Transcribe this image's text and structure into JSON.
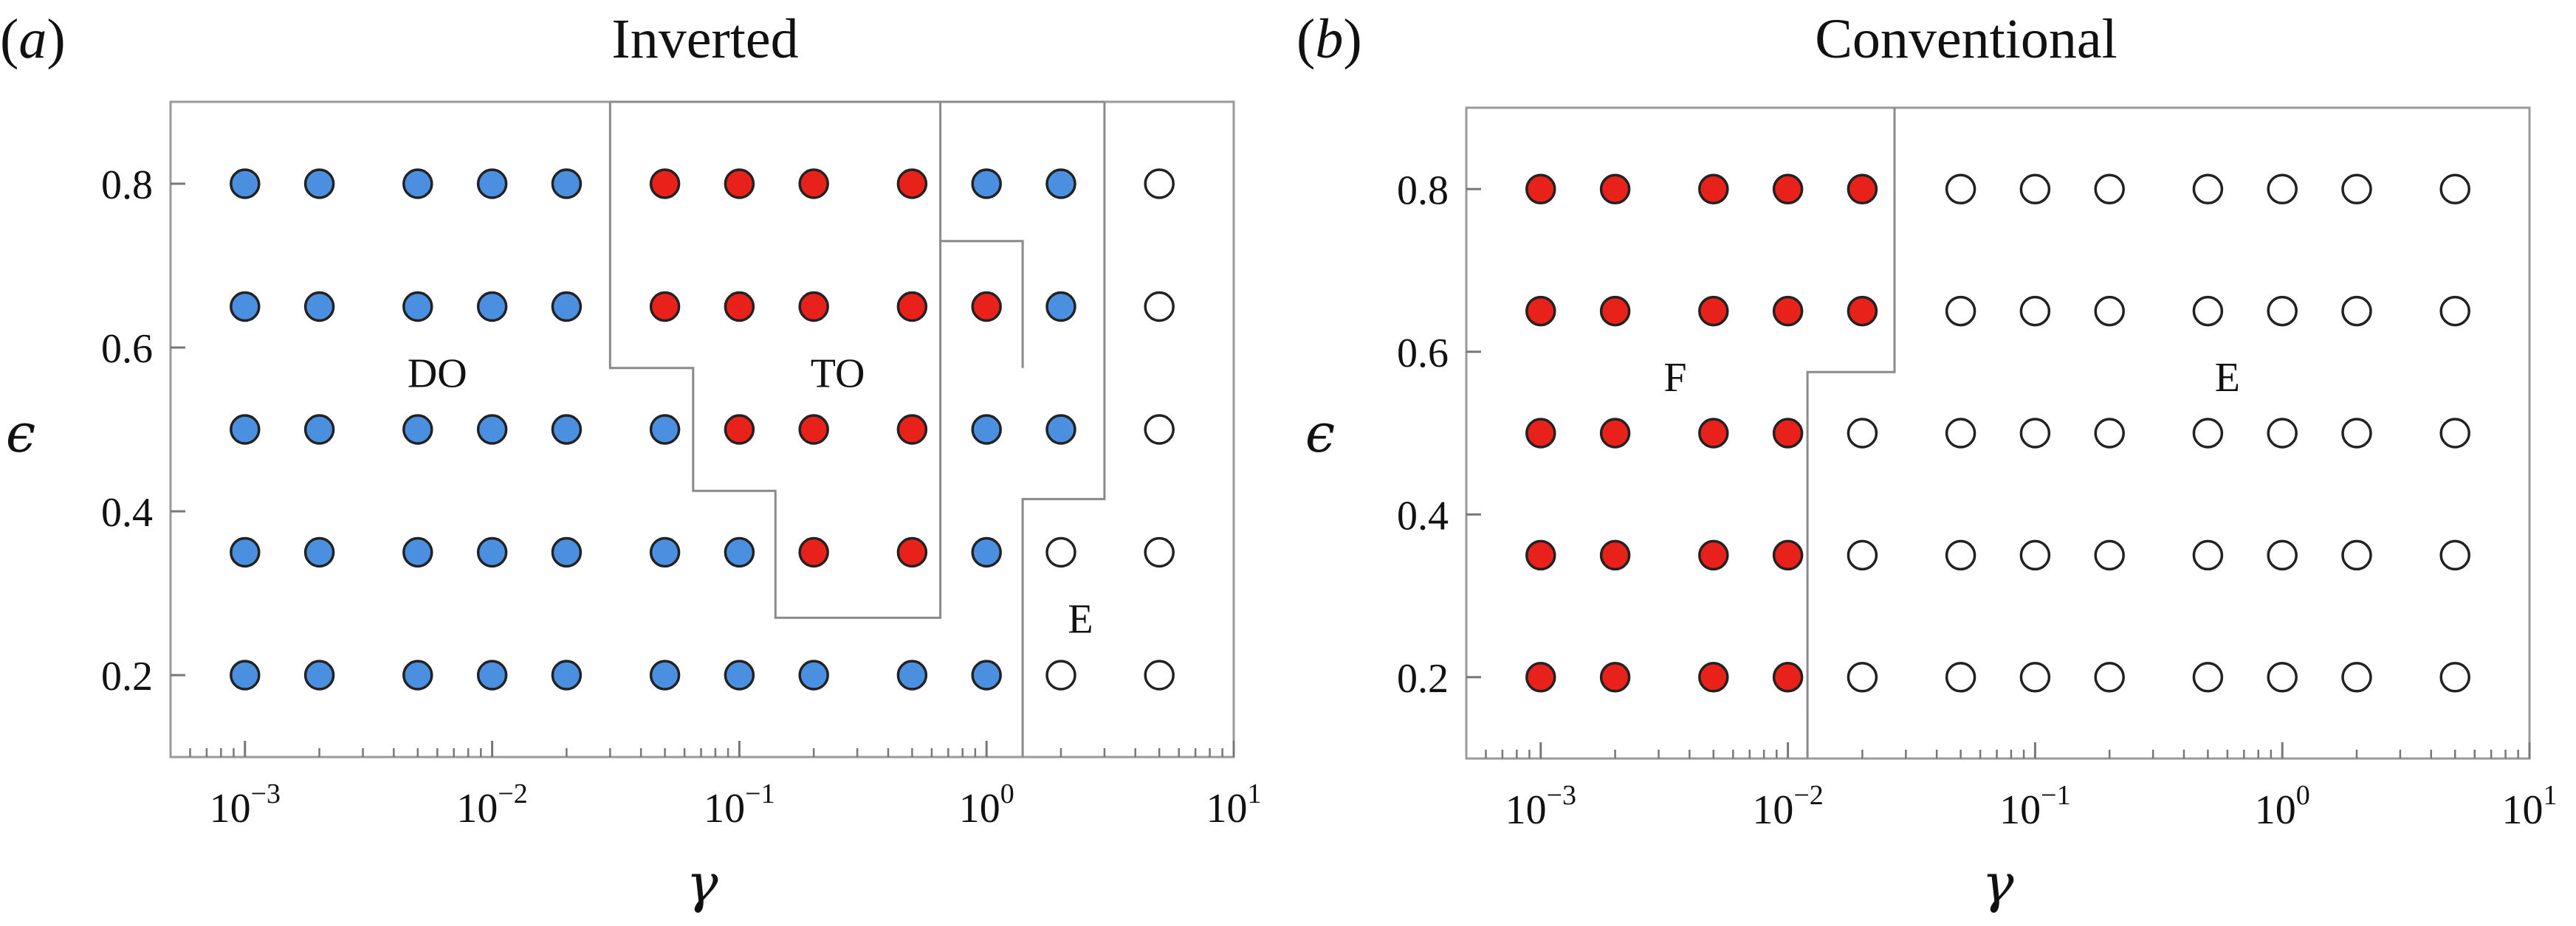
{
  "chart_data": [
    {
      "panel": "a",
      "type": "scatter",
      "title": "Inverted",
      "xlabel": "γ",
      "ylabel": "ϵ",
      "xscale": "log",
      "xlim": [
        0.0005,
        10
      ],
      "ylim": [
        0.1,
        0.9
      ],
      "xticks": [
        {
          "value": 0.001,
          "base": "10",
          "exp": "−3"
        },
        {
          "value": 0.01,
          "base": "10",
          "exp": "−2"
        },
        {
          "value": 0.1,
          "base": "10",
          "exp": "−1"
        },
        {
          "value": 1,
          "base": "10",
          "exp": "0"
        },
        {
          "value": 10,
          "base": "10",
          "exp": "1"
        }
      ],
      "yticks": [
        {
          "value": 0.2,
          "label": "0.2"
        },
        {
          "value": 0.4,
          "label": "0.4"
        },
        {
          "value": 0.6,
          "label": "0.6"
        },
        {
          "value": 0.8,
          "label": "0.8"
        }
      ],
      "grid": false,
      "gamma": [
        0.001,
        0.002,
        0.005,
        0.01,
        0.02,
        0.05,
        0.1,
        0.2,
        0.5,
        1,
        2,
        5
      ],
      "epsilon": [
        0.2,
        0.35,
        0.5,
        0.65,
        0.8
      ],
      "colors": {
        "DO": "#4a8fe0",
        "TO": "#e8211a",
        "E": "#ffffff",
        "F": "#e8211a"
      },
      "states": [
        [
          "DO",
          "DO",
          "DO",
          "DO",
          "DO",
          "DO",
          "DO",
          "DO",
          "DO",
          "DO",
          "E",
          "E"
        ],
        [
          "DO",
          "DO",
          "DO",
          "DO",
          "DO",
          "DO",
          "DO",
          "TO",
          "TO",
          "DO",
          "E",
          "E"
        ],
        [
          "DO",
          "DO",
          "DO",
          "DO",
          "DO",
          "DO",
          "TO",
          "TO",
          "TO",
          "DO",
          "DO",
          "E"
        ],
        [
          "DO",
          "DO",
          "DO",
          "DO",
          "DO",
          "TO",
          "TO",
          "TO",
          "TO",
          "TO",
          "DO",
          "E"
        ],
        [
          "DO",
          "DO",
          "DO",
          "DO",
          "DO",
          "TO",
          "TO",
          "TO",
          "TO",
          "DO",
          "DO",
          "E"
        ]
      ],
      "region_labels": [
        {
          "text": "DO",
          "x": 0.006,
          "y": 0.57
        },
        {
          "text": "TO",
          "x": 0.25,
          "y": 0.57
        },
        {
          "text": "E",
          "x": 2.4,
          "y": 0.27
        }
      ],
      "boundaries": [
        [
          [
            0.03,
            0.9
          ],
          [
            0.03,
            0.575
          ],
          [
            0.065,
            0.575
          ],
          [
            0.065,
            0.425
          ],
          [
            0.14,
            0.425
          ],
          [
            0.14,
            0.27
          ],
          [
            0.65,
            0.27
          ],
          [
            0.65,
            0.73
          ],
          [
            0.65,
            0.73
          ]
        ],
        [
          [
            0.65,
            0.9
          ],
          [
            0.65,
            0.73
          ],
          [
            1.4,
            0.73
          ],
          [
            1.4,
            0.575
          ],
          [
            1.4,
            0.575
          ]
        ],
        [
          [
            1.4,
            0.1
          ],
          [
            1.4,
            0.415
          ],
          [
            3.0,
            0.415
          ],
          [
            3.0,
            0.9
          ]
        ],
        [
          [
            0.03,
            0.9
          ],
          [
            3.0,
            0.9
          ]
        ]
      ]
    },
    {
      "panel": "b",
      "type": "scatter",
      "title": "Conventional",
      "xlabel": "γ",
      "ylabel": "ϵ",
      "xscale": "log",
      "xlim": [
        0.0005,
        10
      ],
      "ylim": [
        0.1,
        0.9
      ],
      "xticks": [
        {
          "value": 0.001,
          "base": "10",
          "exp": "−3"
        },
        {
          "value": 0.01,
          "base": "10",
          "exp": "−2"
        },
        {
          "value": 0.1,
          "base": "10",
          "exp": "−1"
        },
        {
          "value": 1,
          "base": "10",
          "exp": "0"
        },
        {
          "value": 10,
          "base": "10",
          "exp": "1"
        }
      ],
      "yticks": [
        {
          "value": 0.2,
          "label": "0.2"
        },
        {
          "value": 0.4,
          "label": "0.4"
        },
        {
          "value": 0.6,
          "label": "0.6"
        },
        {
          "value": 0.8,
          "label": "0.8"
        }
      ],
      "grid": false,
      "gamma": [
        0.001,
        0.002,
        0.005,
        0.01,
        0.02,
        0.05,
        0.1,
        0.2,
        0.5,
        1,
        2,
        5
      ],
      "epsilon": [
        0.2,
        0.35,
        0.5,
        0.65,
        0.8
      ],
      "colors": {
        "DO": "#4a8fe0",
        "TO": "#e8211a",
        "E": "#ffffff",
        "F": "#e8211a"
      },
      "states": [
        [
          "F",
          "F",
          "F",
          "F",
          "E",
          "E",
          "E",
          "E",
          "E",
          "E",
          "E",
          "E"
        ],
        [
          "F",
          "F",
          "F",
          "F",
          "E",
          "E",
          "E",
          "E",
          "E",
          "E",
          "E",
          "E"
        ],
        [
          "F",
          "F",
          "F",
          "F",
          "E",
          "E",
          "E",
          "E",
          "E",
          "E",
          "E",
          "E"
        ],
        [
          "F",
          "F",
          "F",
          "F",
          "F",
          "E",
          "E",
          "E",
          "E",
          "E",
          "E",
          "E"
        ],
        [
          "F",
          "F",
          "F",
          "F",
          "F",
          "E",
          "E",
          "E",
          "E",
          "E",
          "E",
          "E"
        ]
      ],
      "region_labels": [
        {
          "text": "F",
          "x": 0.0035,
          "y": 0.57
        },
        {
          "text": "E",
          "x": 0.6,
          "y": 0.57
        }
      ],
      "boundaries": [
        [
          [
            0.012,
            0.1
          ],
          [
            0.012,
            0.575
          ],
          [
            0.027,
            0.575
          ],
          [
            0.027,
            0.9
          ]
        ]
      ]
    }
  ]
}
